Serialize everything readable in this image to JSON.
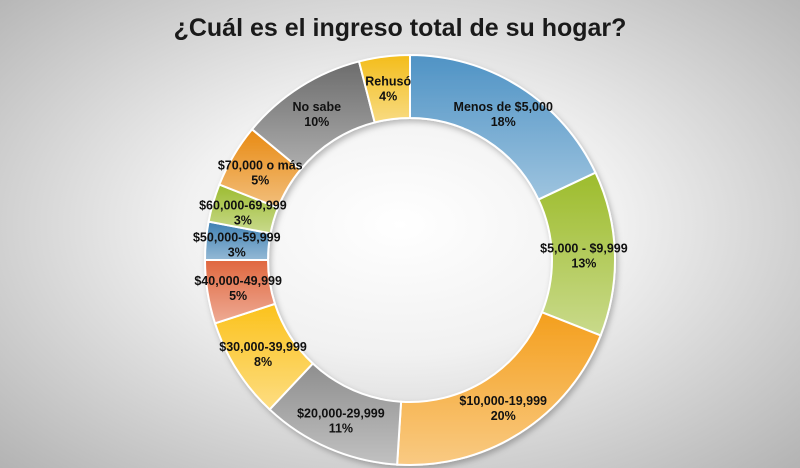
{
  "chart_data": {
    "type": "pie",
    "variant": "doughnut",
    "title": "¿Cuál es el ingreso total de su hogar?",
    "slices": [
      {
        "label": "Menos de $5,000",
        "value": 18,
        "value_label": "18%",
        "color": "#4f93c5"
      },
      {
        "label": "$5,000 - $9,999",
        "value": 13,
        "value_label": "13%",
        "color": "#9dbc2c"
      },
      {
        "label": "$10,000-19,999",
        "value": 20,
        "value_label": "20%",
        "color": "#f49f1d"
      },
      {
        "label": "$20,000-29,999",
        "value": 11,
        "value_label": "11%",
        "color": "#8e8e8e"
      },
      {
        "label": "$30,000-39,999",
        "value": 8,
        "value_label": "8%",
        "color": "#fbc21c"
      },
      {
        "label": "$40,000-49,999",
        "value": 5,
        "value_label": "5%",
        "color": "#e0673f"
      },
      {
        "label": "$50,000-59,999",
        "value": 3,
        "value_label": "3%",
        "color": "#3d7fb2"
      },
      {
        "label": "$60,000-69,999",
        "value": 3,
        "value_label": "3%",
        "color": "#9cbb30"
      },
      {
        "label": "$70,000 o más",
        "value": 5,
        "value_label": "5%",
        "color": "#e88a12"
      },
      {
        "label": "No sabe",
        "value": 10,
        "value_label": "10%",
        "color": "#6c6c6c"
      },
      {
        "label": "Rehusó",
        "value": 4,
        "value_label": "4%",
        "color": "#f3bd1b"
      }
    ]
  }
}
